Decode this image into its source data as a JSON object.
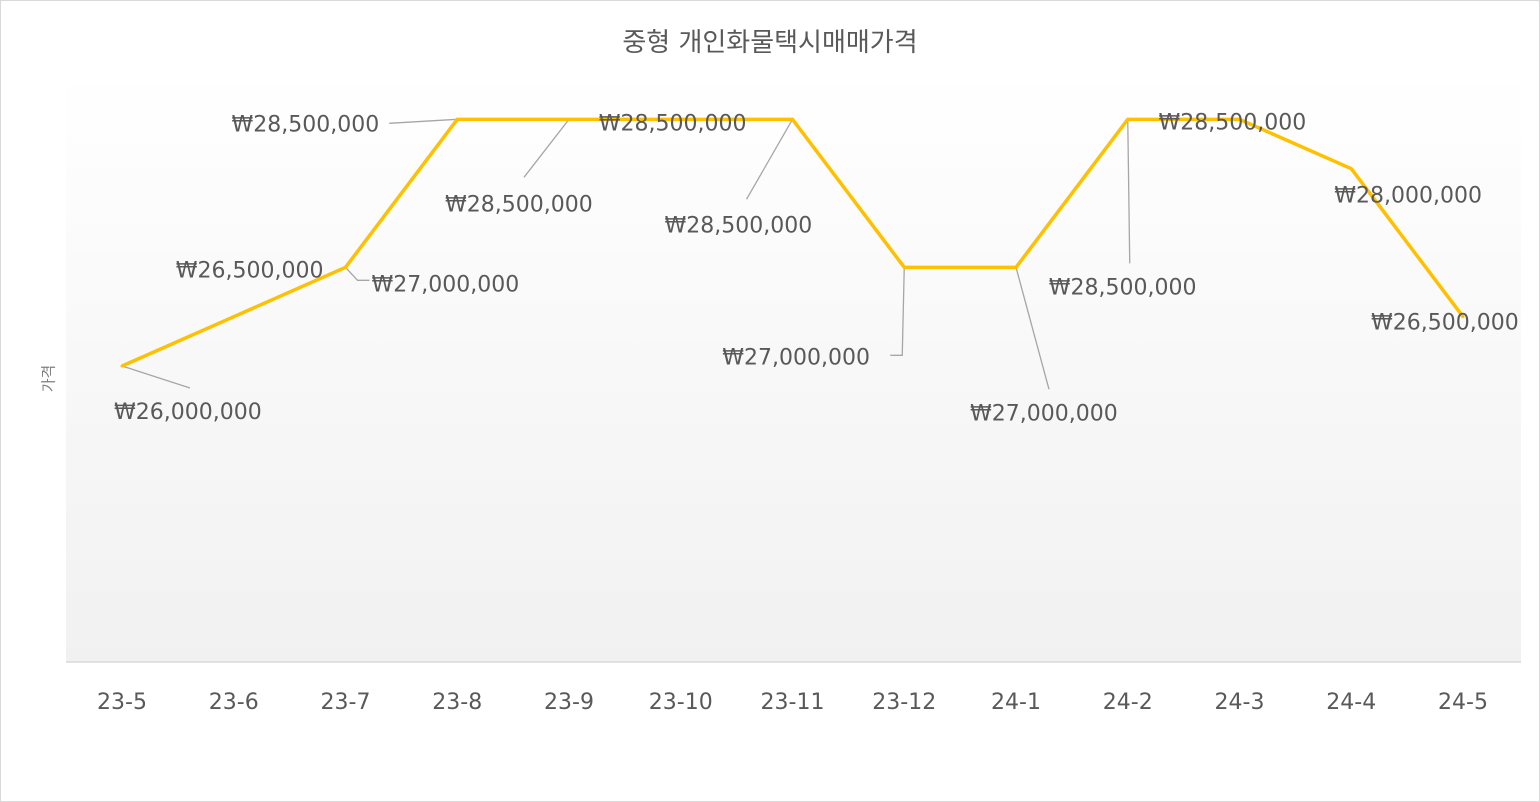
{
  "chart_data": {
    "type": "line",
    "title": "중형 개인화물택시매매가격",
    "xlabel": "",
    "ylabel": "가격",
    "categories": [
      "23-5",
      "23-6",
      "23-7",
      "23-8",
      "23-9",
      "23-10",
      "23-11",
      "23-12",
      "24-1",
      "24-2",
      "24-3",
      "24-4",
      "24-5"
    ],
    "series": [
      {
        "values": [
          26000000,
          26500000,
          27000000,
          28500000,
          28500000,
          28500000,
          28500000,
          27000000,
          27000000,
          28500000,
          28500000,
          28000000,
          26500000
        ],
        "data_labels": [
          "₩26,000,000",
          "₩26,500,000",
          "₩27,000,000",
          "₩28,500,000",
          "₩28,500,000",
          "₩28,500,000",
          "₩28,500,000",
          "₩27,000,000",
          "₩27,000,000",
          "₩28,500,000",
          "₩28,500,000",
          "₩28,000,000",
          "₩26,500,000"
        ],
        "color": "#FFC000"
      }
    ],
    "ylim": [
      23000000,
      29000000
    ],
    "grid": false,
    "legend": "none",
    "plot_background": "gradient #ffffff to #f2f2f2"
  }
}
